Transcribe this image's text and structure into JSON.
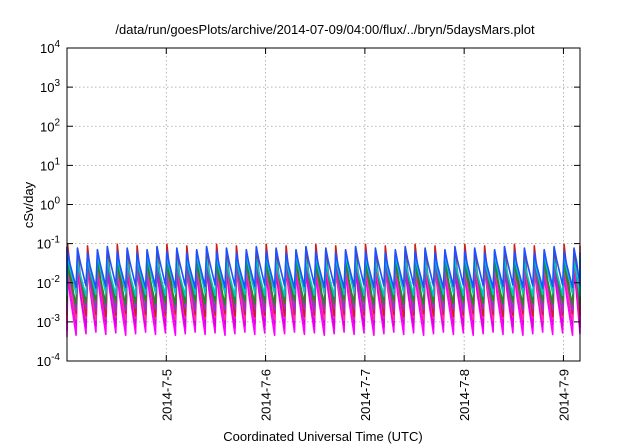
{
  "chart_data": {
    "type": "line",
    "title": "/data/run/goesPlots/archive/2014-07-09/04:00/flux/../bryn/5daysMars.plot",
    "xlabel": "Coordinated Universal Time (UTC)",
    "ylabel": "cSv/day",
    "y_scale": "log",
    "ylim": [
      0.0001,
      10000
    ],
    "y_ticks": [
      {
        "value": 0.0001,
        "base": "10",
        "exp": "-4"
      },
      {
        "value": 0.001,
        "base": "10",
        "exp": "-3"
      },
      {
        "value": 0.01,
        "base": "10",
        "exp": "-2"
      },
      {
        "value": 0.1,
        "base": "10",
        "exp": "-1"
      },
      {
        "value": 1,
        "base": "10",
        "exp": "0"
      },
      {
        "value": 10,
        "base": "10",
        "exp": "1"
      },
      {
        "value": 100,
        "base": "10",
        "exp": "2"
      },
      {
        "value": 1000,
        "base": "10",
        "exp": "3"
      },
      {
        "value": 10000,
        "base": "10",
        "exp": "4"
      }
    ],
    "xlim": [
      "2014-07-04 00:00",
      "2014-07-09 04:00"
    ],
    "x_ticks": [
      {
        "value": "2014-07-05 00:00",
        "label": "2014-7-5"
      },
      {
        "value": "2014-07-06 00:00",
        "label": "2014-7-6"
      },
      {
        "value": "2014-07-07 00:00",
        "label": "2014-7-7"
      },
      {
        "value": "2014-07-08 00:00",
        "label": "2014-7-8"
      },
      {
        "value": "2014-07-09 00:00",
        "label": "2014-7-9"
      }
    ],
    "grid": true,
    "legend": "none",
    "period_hours": 2.4,
    "series": [
      {
        "color": "#ff00ff",
        "peak": 0.02,
        "trough": 0.0005
      },
      {
        "color": "#e000e0",
        "peak": 0.025,
        "trough": 0.0008
      },
      {
        "color": "#ff3399",
        "peak": 0.03,
        "trough": 0.0012
      },
      {
        "color": "#cc2020",
        "peak": 0.08,
        "trough": 0.0015
      },
      {
        "color": "#9932cc",
        "peak": 0.035,
        "trough": 0.002
      },
      {
        "color": "#1a8f1a",
        "peak": 0.04,
        "trough": 0.003
      },
      {
        "color": "#00c8c8",
        "peak": 0.045,
        "trough": 0.005
      },
      {
        "color": "#2050ff",
        "peak": 0.07,
        "trough": 0.008
      }
    ]
  }
}
